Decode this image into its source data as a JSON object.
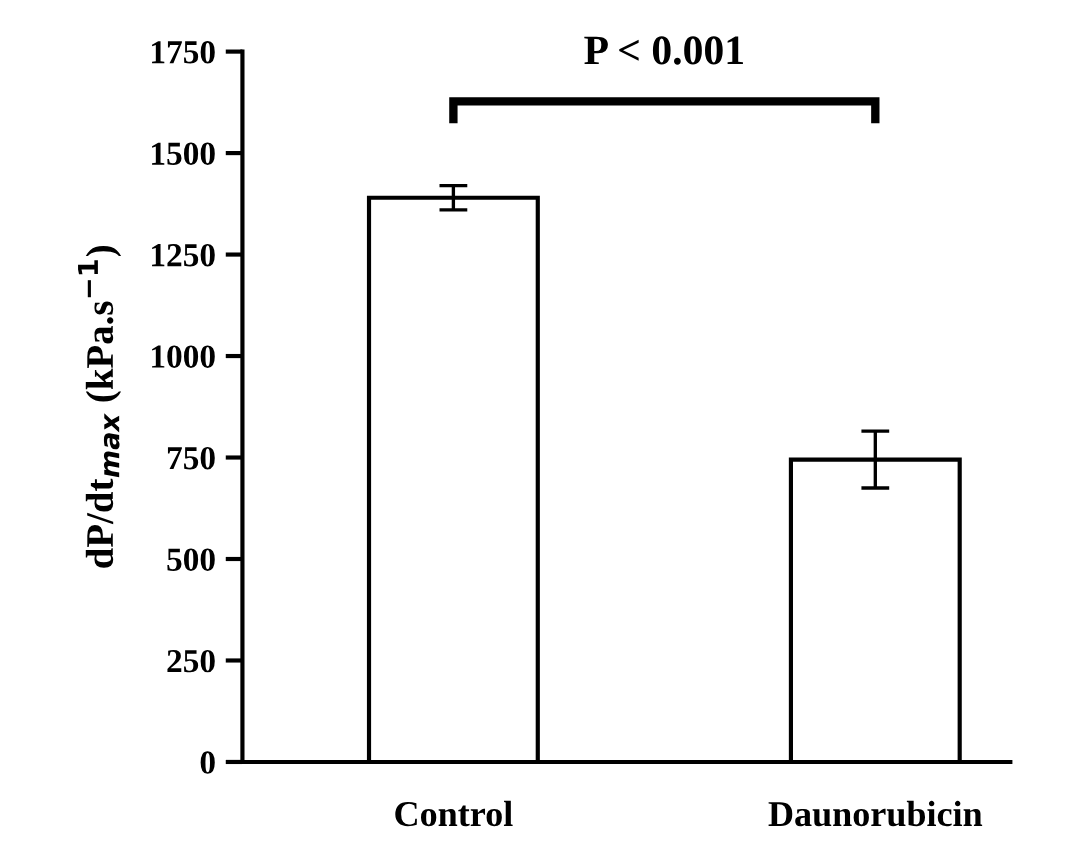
{
  "chart_data": {
    "type": "bar",
    "categories": [
      "Control",
      "Daunorubicin"
    ],
    "values": [
      1390,
      745
    ],
    "errors": [
      30,
      70
    ],
    "color": "#ffffff",
    "ylabel": "dP/dt$_{max}$ (kPa.s$^{−1}$)",
    "ylim": [
      0,
      1750
    ],
    "yticks": [
      0,
      250,
      500,
      750,
      1000,
      1250,
      1500,
      1750
    ],
    "annotations": [
      "P < 0.001"
    ],
    "grid": false,
    "legend": false
  }
}
